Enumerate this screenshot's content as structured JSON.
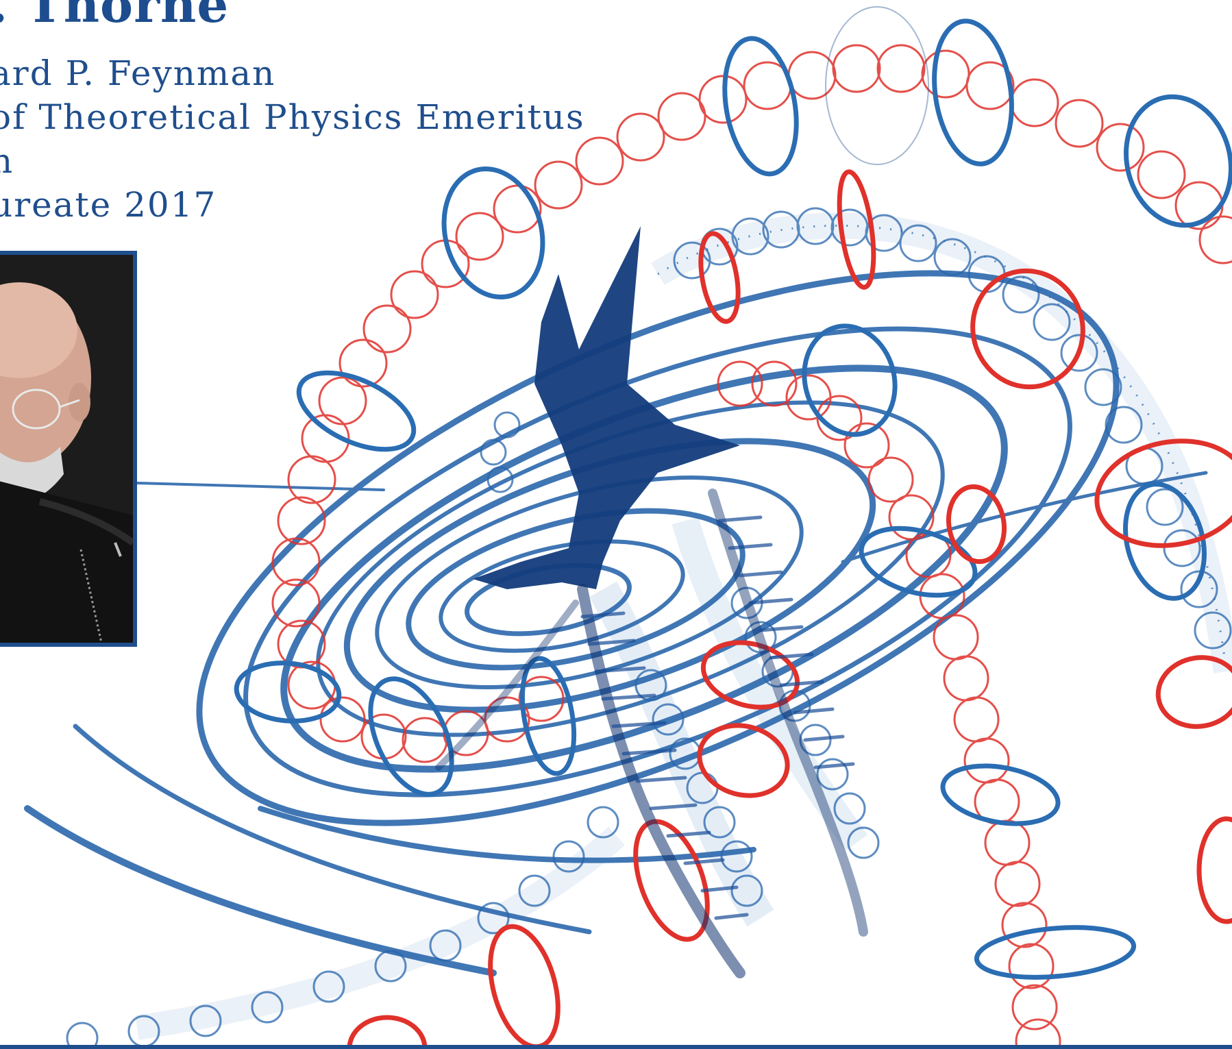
{
  "poster": {
    "title_fragment": ". Thorne",
    "lines": [
      "ard P. Feynman",
      " of Theoretical Physics Emeritus",
      "n",
      "ureate 2017"
    ]
  },
  "colors": {
    "text_blue": "#1f4e8c",
    "ink_blue": "#1f5fa8",
    "deep_blue": "#0e2f6b",
    "red": "#e0312b"
  }
}
